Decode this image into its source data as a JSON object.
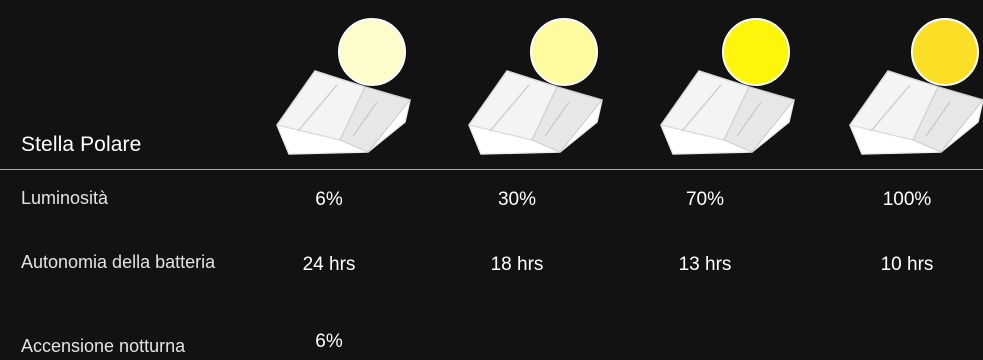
{
  "product": {
    "title": "Stella Polare"
  },
  "rows": {
    "brightness": "Luminosità",
    "battery": "Autonomia della batteria",
    "night": "Accensione notturna"
  },
  "levels": [
    {
      "brightness": "6%",
      "battery": "24 hrs",
      "night": "6%",
      "color": "#fdfccb"
    },
    {
      "brightness": "30%",
      "battery": "18 hrs",
      "night": "",
      "color": "#fcfc9e"
    },
    {
      "brightness": "70%",
      "battery": "13 hrs",
      "night": "",
      "color": "#fdf50c"
    },
    {
      "brightness": "100%",
      "battery": "10 hrs",
      "night": "",
      "color": "#fbdf26"
    }
  ],
  "icons": {
    "lamp": "lamp-icon"
  },
  "colors": {
    "background": "#121212",
    "text": "#ffffff",
    "divider": "#a6a6a6"
  }
}
